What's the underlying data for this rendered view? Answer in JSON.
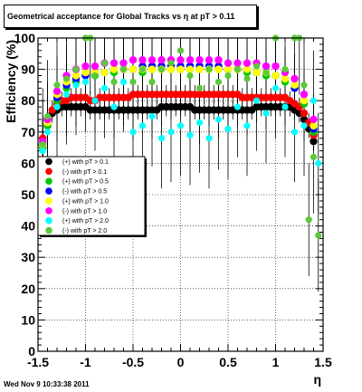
{
  "header": {
    "title": "Geometrical acceptance for Global Tracks vs   η at pT > 0.11"
  },
  "footer": {
    "timestamp": "Wed Nov  9 10:33:38 2011"
  },
  "chart_data": {
    "type": "scatter",
    "title": "Geometrical acceptance for Global Tracks vs   η at pT > 0.11",
    "xlabel": "η",
    "ylabel": "Efficiency (%)",
    "xlim": [
      -1.5,
      1.5
    ],
    "ylim": [
      0,
      100
    ],
    "x_ticks": [
      -1.5,
      -1,
      -0.5,
      0,
      0.5,
      1,
      1.5
    ],
    "x_tick_labels": [
      "-1.5",
      "-1",
      "-0.5",
      "0",
      "0.5",
      "1",
      "1.5"
    ],
    "y_ticks": [
      0,
      10,
      20,
      30,
      40,
      50,
      60,
      70,
      80,
      90,
      100
    ],
    "y_tick_labels": [
      "0",
      "10",
      "20",
      "30",
      "40",
      "50",
      "60",
      "70",
      "80",
      "90",
      "100"
    ],
    "grid": true,
    "legend_position": "center-left",
    "series": [
      {
        "name": "(+) with pT > 0.1",
        "color": "#000000",
        "shape": "circle",
        "points": [
          [
            -1.45,
            66
          ],
          [
            -1.4,
            72
          ],
          [
            -1.35,
            76
          ],
          [
            -1.3,
            77
          ],
          [
            -1.25,
            78
          ],
          [
            -1.2,
            78
          ],
          [
            -1.15,
            78
          ],
          [
            -1.1,
            78
          ],
          [
            -1.05,
            78
          ],
          [
            -1.0,
            78
          ],
          [
            -0.95,
            77
          ],
          [
            -0.9,
            77
          ],
          [
            -0.85,
            77
          ],
          [
            -0.8,
            77
          ],
          [
            -0.75,
            77
          ],
          [
            -0.7,
            77
          ],
          [
            -0.65,
            77
          ],
          [
            -0.6,
            77
          ],
          [
            -0.55,
            77
          ],
          [
            -0.5,
            77
          ],
          [
            -0.45,
            77
          ],
          [
            -0.4,
            77
          ],
          [
            -0.35,
            77
          ],
          [
            -0.3,
            77
          ],
          [
            -0.25,
            77
          ],
          [
            -0.2,
            78
          ],
          [
            -0.15,
            78
          ],
          [
            -0.1,
            78
          ],
          [
            -0.05,
            78
          ],
          [
            0.0,
            78
          ],
          [
            0.05,
            78
          ],
          [
            0.1,
            78
          ],
          [
            0.15,
            77
          ],
          [
            0.2,
            77
          ],
          [
            0.25,
            77
          ],
          [
            0.3,
            77
          ],
          [
            0.35,
            77
          ],
          [
            0.4,
            77
          ],
          [
            0.45,
            77
          ],
          [
            0.5,
            77
          ],
          [
            0.55,
            77
          ],
          [
            0.6,
            77
          ],
          [
            0.65,
            77
          ],
          [
            0.7,
            77
          ],
          [
            0.75,
            77
          ],
          [
            0.8,
            78
          ],
          [
            0.85,
            78
          ],
          [
            0.9,
            78
          ],
          [
            0.95,
            78
          ],
          [
            1.0,
            78
          ],
          [
            1.05,
            78
          ],
          [
            1.1,
            78
          ],
          [
            1.15,
            78
          ],
          [
            1.2,
            77
          ],
          [
            1.25,
            76
          ],
          [
            1.3,
            74
          ],
          [
            1.35,
            71
          ],
          [
            1.4,
            67
          ]
        ]
      },
      {
        "name": "(-) with pT > 0.1",
        "color": "#ff0000",
        "shape": "circle",
        "points": [
          [
            -1.45,
            68
          ],
          [
            -1.4,
            74
          ],
          [
            -1.35,
            77
          ],
          [
            -1.3,
            79
          ],
          [
            -1.25,
            80
          ],
          [
            -1.2,
            80
          ],
          [
            -1.15,
            81
          ],
          [
            -1.1,
            81
          ],
          [
            -1.05,
            81
          ],
          [
            -1.0,
            81
          ],
          [
            -0.95,
            80
          ],
          [
            -0.9,
            80
          ],
          [
            -0.85,
            81
          ],
          [
            -0.8,
            81
          ],
          [
            -0.75,
            81
          ],
          [
            -0.7,
            81
          ],
          [
            -0.65,
            81
          ],
          [
            -0.6,
            81
          ],
          [
            -0.55,
            81
          ],
          [
            -0.5,
            82
          ],
          [
            -0.45,
            82
          ],
          [
            -0.4,
            82
          ],
          [
            -0.35,
            82
          ],
          [
            -0.3,
            82
          ],
          [
            -0.25,
            82
          ],
          [
            -0.2,
            82
          ],
          [
            -0.15,
            82
          ],
          [
            -0.1,
            82
          ],
          [
            -0.05,
            82
          ],
          [
            0.0,
            82
          ],
          [
            0.05,
            82
          ],
          [
            0.1,
            82
          ],
          [
            0.15,
            82
          ],
          [
            0.2,
            82
          ],
          [
            0.25,
            82
          ],
          [
            0.3,
            82
          ],
          [
            0.35,
            82
          ],
          [
            0.4,
            82
          ],
          [
            0.45,
            82
          ],
          [
            0.5,
            82
          ],
          [
            0.55,
            82
          ],
          [
            0.6,
            82
          ],
          [
            0.65,
            81
          ],
          [
            0.7,
            81
          ],
          [
            0.75,
            81
          ],
          [
            0.8,
            81
          ],
          [
            0.85,
            81
          ],
          [
            0.9,
            81
          ],
          [
            0.95,
            81
          ],
          [
            1.0,
            81
          ],
          [
            1.05,
            81
          ],
          [
            1.1,
            81
          ],
          [
            1.15,
            80
          ],
          [
            1.2,
            79
          ],
          [
            1.25,
            78
          ],
          [
            1.3,
            76
          ],
          [
            1.35,
            73
          ],
          [
            1.4,
            69
          ]
        ]
      },
      {
        "name": "(+) with pT > 0.5",
        "color": "#00c800",
        "shape": "circle",
        "points": [
          [
            -1.45,
            65
          ],
          [
            -1.4,
            72
          ],
          [
            -1.3,
            80
          ],
          [
            -1.2,
            84
          ],
          [
            -1.1,
            86
          ],
          [
            -1.0,
            88
          ],
          [
            -0.9,
            88
          ],
          [
            -0.8,
            89
          ],
          [
            -0.7,
            89
          ],
          [
            -0.6,
            90
          ],
          [
            -0.5,
            90
          ],
          [
            -0.4,
            89
          ],
          [
            -0.3,
            90
          ],
          [
            -0.2,
            90
          ],
          [
            -0.1,
            90
          ],
          [
            0.0,
            90
          ],
          [
            0.1,
            90
          ],
          [
            0.2,
            90
          ],
          [
            0.3,
            90
          ],
          [
            0.4,
            90
          ],
          [
            0.5,
            90
          ],
          [
            0.6,
            90
          ],
          [
            0.7,
            89
          ],
          [
            0.8,
            89
          ],
          [
            0.9,
            88
          ],
          [
            1.0,
            88
          ],
          [
            1.1,
            86
          ],
          [
            1.2,
            84
          ],
          [
            1.3,
            79
          ],
          [
            1.4,
            70
          ]
        ]
      },
      {
        "name": "(-) with pT > 0.5",
        "color": "#0000ff",
        "shape": "circle",
        "points": [
          [
            -1.45,
            66
          ],
          [
            -1.4,
            73
          ],
          [
            -1.3,
            81
          ],
          [
            -1.2,
            85
          ],
          [
            -1.1,
            87
          ],
          [
            -1.0,
            88
          ],
          [
            -0.9,
            89
          ],
          [
            -0.8,
            89
          ],
          [
            -0.7,
            90
          ],
          [
            -0.6,
            90
          ],
          [
            -0.5,
            90
          ],
          [
            -0.4,
            91
          ],
          [
            -0.3,
            91
          ],
          [
            -0.2,
            91
          ],
          [
            -0.1,
            91
          ],
          [
            0.0,
            91
          ],
          [
            0.1,
            91
          ],
          [
            0.2,
            91
          ],
          [
            0.3,
            91
          ],
          [
            0.4,
            91
          ],
          [
            0.5,
            90
          ],
          [
            0.6,
            90
          ],
          [
            0.7,
            90
          ],
          [
            0.8,
            89
          ],
          [
            0.9,
            89
          ],
          [
            1.0,
            88
          ],
          [
            1.1,
            87
          ],
          [
            1.2,
            84
          ],
          [
            1.3,
            80
          ],
          [
            1.4,
            71
          ]
        ]
      },
      {
        "name": "(+) with pT > 1.0",
        "color": "#ffff00",
        "shape": "circle",
        "points": [
          [
            -1.45,
            66
          ],
          [
            -1.4,
            73
          ],
          [
            -1.3,
            82
          ],
          [
            -1.2,
            86
          ],
          [
            -1.1,
            88
          ],
          [
            -1.0,
            89
          ],
          [
            -0.9,
            89
          ],
          [
            -0.8,
            89
          ],
          [
            -0.7,
            90
          ],
          [
            -0.6,
            90
          ],
          [
            -0.5,
            90
          ],
          [
            -0.4,
            90
          ],
          [
            -0.3,
            90
          ],
          [
            -0.2,
            90
          ],
          [
            -0.1,
            90
          ],
          [
            0.0,
            90
          ],
          [
            0.1,
            90
          ],
          [
            0.2,
            90
          ],
          [
            0.3,
            90
          ],
          [
            0.4,
            90
          ],
          [
            0.5,
            90
          ],
          [
            0.6,
            90
          ],
          [
            0.7,
            90
          ],
          [
            0.8,
            89
          ],
          [
            0.9,
            89
          ],
          [
            1.0,
            88
          ],
          [
            1.1,
            87
          ],
          [
            1.2,
            85
          ],
          [
            1.3,
            80
          ],
          [
            1.4,
            72
          ]
        ]
      },
      {
        "name": "(-) with pT > 1.0",
        "color": "#ff00ff",
        "shape": "circle",
        "points": [
          [
            -1.45,
            67
          ],
          [
            -1.4,
            74
          ],
          [
            -1.3,
            83
          ],
          [
            -1.2,
            88
          ],
          [
            -1.1,
            90
          ],
          [
            -1.0,
            91
          ],
          [
            -0.9,
            91
          ],
          [
            -0.8,
            92
          ],
          [
            -0.7,
            92
          ],
          [
            -0.6,
            92
          ],
          [
            -0.5,
            93
          ],
          [
            -0.4,
            93
          ],
          [
            -0.3,
            93
          ],
          [
            -0.2,
            93
          ],
          [
            -0.1,
            93
          ],
          [
            0.0,
            93
          ],
          [
            0.1,
            93
          ],
          [
            0.2,
            93
          ],
          [
            0.3,
            93
          ],
          [
            0.4,
            93
          ],
          [
            0.5,
            92
          ],
          [
            0.6,
            92
          ],
          [
            0.7,
            92
          ],
          [
            0.8,
            92
          ],
          [
            0.9,
            91
          ],
          [
            1.0,
            91
          ],
          [
            1.1,
            89
          ],
          [
            1.2,
            87
          ],
          [
            1.3,
            82
          ],
          [
            1.4,
            74
          ]
        ]
      },
      {
        "name": "(+) with pT > 2.0",
        "color": "#00ffff",
        "shape": "circle",
        "points": [
          [
            -1.45,
            64
          ],
          [
            -1.4,
            70
          ],
          [
            -1.3,
            78
          ],
          [
            -1.2,
            82
          ],
          [
            -1.1,
            85
          ],
          [
            -1.0,
            86
          ],
          [
            -0.9,
            80
          ],
          [
            -0.8,
            84
          ],
          [
            -0.7,
            78
          ],
          [
            -0.6,
            86
          ],
          [
            -0.5,
            70
          ],
          [
            -0.4,
            72
          ],
          [
            -0.3,
            75
          ],
          [
            -0.2,
            68
          ],
          [
            -0.1,
            70
          ],
          [
            0.0,
            72
          ],
          [
            0.1,
            69
          ],
          [
            0.2,
            73
          ],
          [
            0.3,
            68
          ],
          [
            0.4,
            74
          ],
          [
            0.5,
            71
          ],
          [
            0.6,
            78
          ],
          [
            0.7,
            72
          ],
          [
            0.8,
            80
          ],
          [
            0.9,
            76
          ],
          [
            1.0,
            84
          ],
          [
            1.1,
            78
          ],
          [
            1.2,
            70
          ],
          [
            1.3,
            72
          ],
          [
            1.4,
            80
          ],
          [
            1.45,
            60
          ]
        ]
      },
      {
        "name": "(-) with pT > 2.0",
        "color": "#5cc83c",
        "shape": "circle",
        "points": [
          [
            -1.45,
            66
          ],
          [
            -1.4,
            75
          ],
          [
            -1.3,
            85
          ],
          [
            -1.2,
            87
          ],
          [
            -1.1,
            90
          ],
          [
            -1.0,
            100
          ],
          [
            -0.95,
            100
          ],
          [
            -0.9,
            88
          ],
          [
            -0.8,
            92
          ],
          [
            -0.7,
            86
          ],
          [
            -0.6,
            90
          ],
          [
            -0.5,
            86
          ],
          [
            -0.4,
            90
          ],
          [
            -0.3,
            86
          ],
          [
            -0.2,
            90
          ],
          [
            -0.1,
            92
          ],
          [
            0.0,
            96
          ],
          [
            0.1,
            88
          ],
          [
            0.2,
            84
          ],
          [
            0.3,
            90
          ],
          [
            0.4,
            86
          ],
          [
            0.5,
            88
          ],
          [
            0.6,
            90
          ],
          [
            0.7,
            87
          ],
          [
            0.8,
            91
          ],
          [
            0.9,
            89
          ],
          [
            1.0,
            100
          ],
          [
            1.1,
            90
          ],
          [
            1.2,
            100
          ],
          [
            1.25,
            100
          ],
          [
            1.3,
            85
          ],
          [
            1.35,
            42
          ],
          [
            1.4,
            62
          ],
          [
            1.45,
            37
          ]
        ]
      }
    ]
  }
}
